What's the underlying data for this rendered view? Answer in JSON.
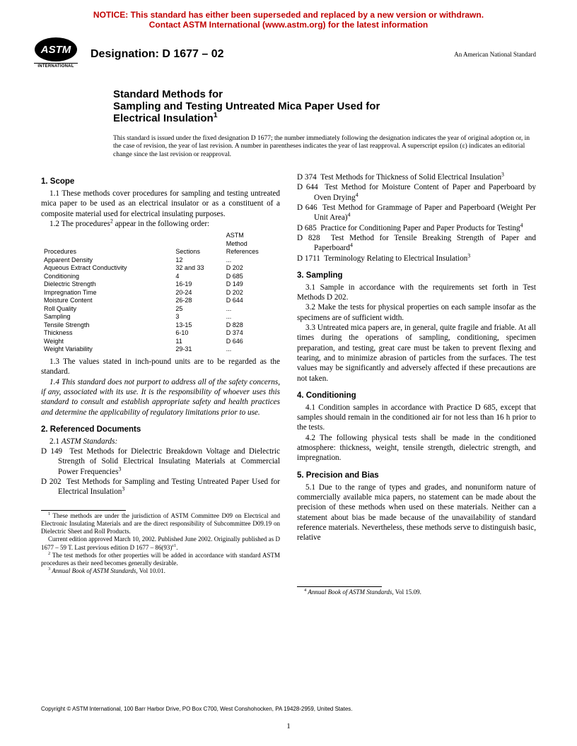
{
  "notice": {
    "line1": "NOTICE: This standard has either been superseded and replaced by a new version or withdrawn.",
    "line2": "Contact ASTM International (www.astm.org) for the latest information",
    "color": "#c00000"
  },
  "header": {
    "designation": "Designation: D 1677 – 02",
    "ans": "An American National Standard",
    "logo_text": "ASTM",
    "logo_intl": "INTERNATIONAL"
  },
  "title": {
    "l1": "Standard Methods for",
    "l2": "Sampling and Testing Untreated Mica Paper Used for",
    "l3": "Electrical Insulation",
    "sup": "1"
  },
  "intro": "This standard is issued under the fixed designation D 1677; the number immediately following the designation indicates the year of original adoption or, in the case of revision, the year of last revision. A number in parentheses indicates the year of last reapproval. A superscript epsilon (ε) indicates an editorial change since the last revision or reapproval.",
  "s1h": "1. Scope",
  "s1_1": "1.1 These methods cover procedures for sampling and testing untreated mica paper to be used as an electrical insulator or as a constituent of a composite material used for electrical insulating purposes.",
  "s1_2a": "1.2 The procedures",
  "s1_2b": " appear in the following order:",
  "table": {
    "h1": "Procedures",
    "h2": "Sections",
    "h3a": "ASTM",
    "h3b": "Method",
    "h3c": "References",
    "rows": [
      [
        "Apparent Density",
        "12",
        "..."
      ],
      [
        "Aqueous Extract Conductivity",
        "32 and 33",
        "D 202"
      ],
      [
        "Conditioning",
        "4",
        "D 685"
      ],
      [
        "Dielectric Strength",
        "16-19",
        "D 149"
      ],
      [
        "Impregnation Time",
        "20-24",
        "D 202"
      ],
      [
        "Moisture Content",
        "26-28",
        "D 644"
      ],
      [
        "Roll Quality",
        "25",
        "..."
      ],
      [
        "Sampling",
        "3",
        "..."
      ],
      [
        "Tensile Strength",
        "13-15",
        "D 828"
      ],
      [
        "Thickness",
        "6-10",
        "D 374"
      ],
      [
        "Weight",
        "11",
        "D 646"
      ],
      [
        "Weight Variability",
        "29-31",
        "..."
      ]
    ]
  },
  "s1_3": "1.3 The values stated in inch-pound units are to be regarded as the standard.",
  "s1_4": "1.4 This standard does not purport to address all of the safety concerns, if any, associated with its use. It is the responsibility of whoever uses this standard to consult and establish appropriate safety and health practices and determine the applicability of regulatory limitations prior to use.",
  "s2h": "2. Referenced Documents",
  "s2_1": "2.1 ASTM Standards:",
  "r1a": "D 149",
  "r1b": "Test Methods for Dielectric Breakdown Voltage and Dielectric Strength of Solid Electrical Insulating Materials at Commercial Power Frequencies",
  "r2a": "D 202",
  "r2b": "Test Methods for Sampling and Testing Untreated Paper Used for Electrical Insulation",
  "r3a": "D 374",
  "r3b": "Test Methods for Thickness of Solid Electrical Insulation",
  "r4a": "D 644",
  "r4b": "Test Method for Moisture Content of Paper and Paperboard by Oven Drying",
  "r5a": "D 646",
  "r5b": "Test Method for Grammage of Paper and Paperboard (Weight Per Unit Area)",
  "r6a": "D 685",
  "r6b": "Practice for Conditioning Paper and Paper Products for Testing",
  "r7a": "D 828",
  "r7b": "Test Method for Tensile Breaking Strength of Paper and Paperboard",
  "r8a": "D 1711",
  "r8b": "Terminology Relating to Electrical Insulation",
  "s3h": "3. Sampling",
  "s3_1": "3.1 Sample in accordance with the requirements set forth in Test Methods D 202.",
  "s3_2": "3.2 Make the tests for physical properties on each sample insofar as the specimens are of sufficient width.",
  "s3_3": "3.3 Untreated mica papers are, in general, quite fragile and friable. At all times during the operations of sampling, conditioning, specimen preparation, and testing, great care must be taken to prevent flexing and tearing, and to minimize abrasion of particles from the surfaces. The test values may be significantly and adversely affected if these precautions are not taken.",
  "s4h": "4. Conditioning",
  "s4_1": "4.1 Condition samples in accordance with Practice D 685, except that samples should remain in the conditioned air for not less than 16 h prior to the tests.",
  "s4_2": "4.2 The following physical tests shall be made in the conditioned atmosphere: thickness, weight, tensile strength, dielectric strength, and impregnation.",
  "s5h": "5. Precision and Bias",
  "s5_1": "5.1 Due to the range of types and grades, and nonuniform nature of commercially available mica papers, no statement can be made about the precision of these methods when used on these materials. Neither can a statement about bias be made because of the unavailability of standard reference materials. Nevertheless, these methods serve to distinguish basic, relative",
  "fn1": "These methods are under the jurisdiction of ASTM Committee D09 on Electrical and Electronic Insulating Materials and are the direct responsibility of Subcommittee D09.19 on Dielectric Sheet and Roll Products.",
  "fn1b": "Current edition approved March 10, 2002. Published June 2002. Originally published as D 1677 – 59 T. Last previous edition D 1677 – 86(93)",
  "fn2": "The test methods for other properties will be added in accordance with standard ASTM procedures as their need becomes generally desirable.",
  "fn3": "Annual Book of ASTM Standards,",
  "fn3v": " Vol 10.01.",
  "fn4": "Annual Book of ASTM Standards,",
  "fn4v": " Vol 15.09.",
  "copyright": "Copyright © ASTM International, 100 Barr Harbor Drive, PO Box C700, West Conshohocken, PA 19428-2959, United States.",
  "page": "1"
}
